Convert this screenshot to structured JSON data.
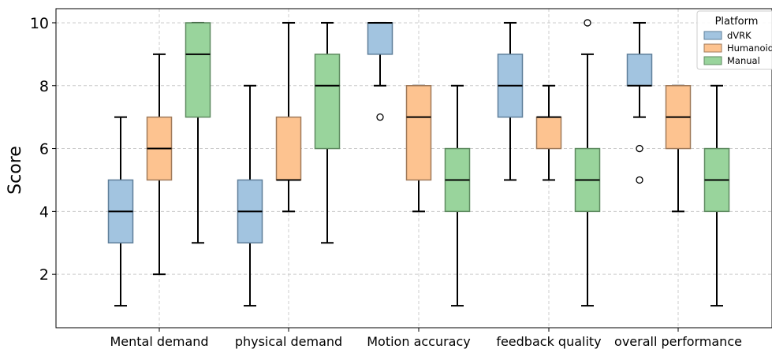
{
  "chart_data": {
    "type": "box",
    "title": "",
    "xlabel": "",
    "ylabel": "Score",
    "ylim": [
      0.3,
      10.45
    ],
    "yticks": [
      2,
      4,
      6,
      8,
      10
    ],
    "grid": true,
    "legend": {
      "title": "Platform",
      "placement": "top-right",
      "entries": [
        "dVRK",
        "Humanoid",
        "Manual"
      ]
    },
    "categories": [
      "Mental demand",
      "physical demand",
      "Motion accuracy",
      "feedback quality",
      "overall performance"
    ],
    "series": [
      {
        "name": "dVRK",
        "color": "#a2c4e0",
        "edge": "#5f7f9a",
        "boxes": [
          {
            "whislo": 1,
            "q1": 3,
            "med": 4,
            "q3": 5,
            "whishi": 7,
            "fliers": []
          },
          {
            "whislo": 1,
            "q1": 3,
            "med": 4,
            "q3": 5,
            "whishi": 8,
            "fliers": []
          },
          {
            "whislo": 8,
            "q1": 9,
            "med": 10,
            "q3": 10,
            "whishi": 10,
            "fliers": [
              7
            ]
          },
          {
            "whislo": 5,
            "q1": 7,
            "med": 8,
            "q3": 9,
            "whishi": 10,
            "fliers": []
          },
          {
            "whislo": 7,
            "q1": 8,
            "med": 8,
            "q3": 9,
            "whishi": 10,
            "fliers": [
              6,
              5
            ]
          }
        ]
      },
      {
        "name": "Humanoid",
        "color": "#fdc390",
        "edge": "#a07a5a",
        "boxes": [
          {
            "whislo": 2,
            "q1": 5,
            "med": 6,
            "q3": 7,
            "whishi": 9,
            "fliers": []
          },
          {
            "whislo": 4,
            "q1": 5,
            "med": 5,
            "q3": 7,
            "whishi": 10,
            "fliers": []
          },
          {
            "whislo": 4,
            "q1": 5,
            "med": 7,
            "q3": 8,
            "whishi": 8,
            "fliers": []
          },
          {
            "whislo": 5,
            "q1": 6,
            "med": 7,
            "q3": 7,
            "whishi": 8,
            "fliers": []
          },
          {
            "whislo": 4,
            "q1": 6,
            "med": 7,
            "q3": 8,
            "whishi": 8,
            "fliers": []
          }
        ]
      },
      {
        "name": "Manual",
        "color": "#99d49c",
        "edge": "#5e8a60",
        "boxes": [
          {
            "whislo": 3,
            "q1": 7,
            "med": 9,
            "q3": 10,
            "whishi": 10,
            "fliers": []
          },
          {
            "whislo": 3,
            "q1": 6,
            "med": 8,
            "q3": 9,
            "whishi": 10,
            "fliers": []
          },
          {
            "whislo": 1,
            "q1": 4,
            "med": 5,
            "q3": 6,
            "whishi": 8,
            "fliers": []
          },
          {
            "whislo": 1,
            "q1": 4,
            "med": 5,
            "q3": 6,
            "whishi": 9,
            "fliers": [
              10
            ]
          },
          {
            "whislo": 1,
            "q1": 4,
            "med": 5,
            "q3": 6,
            "whishi": 8,
            "fliers": []
          }
        ]
      }
    ]
  }
}
